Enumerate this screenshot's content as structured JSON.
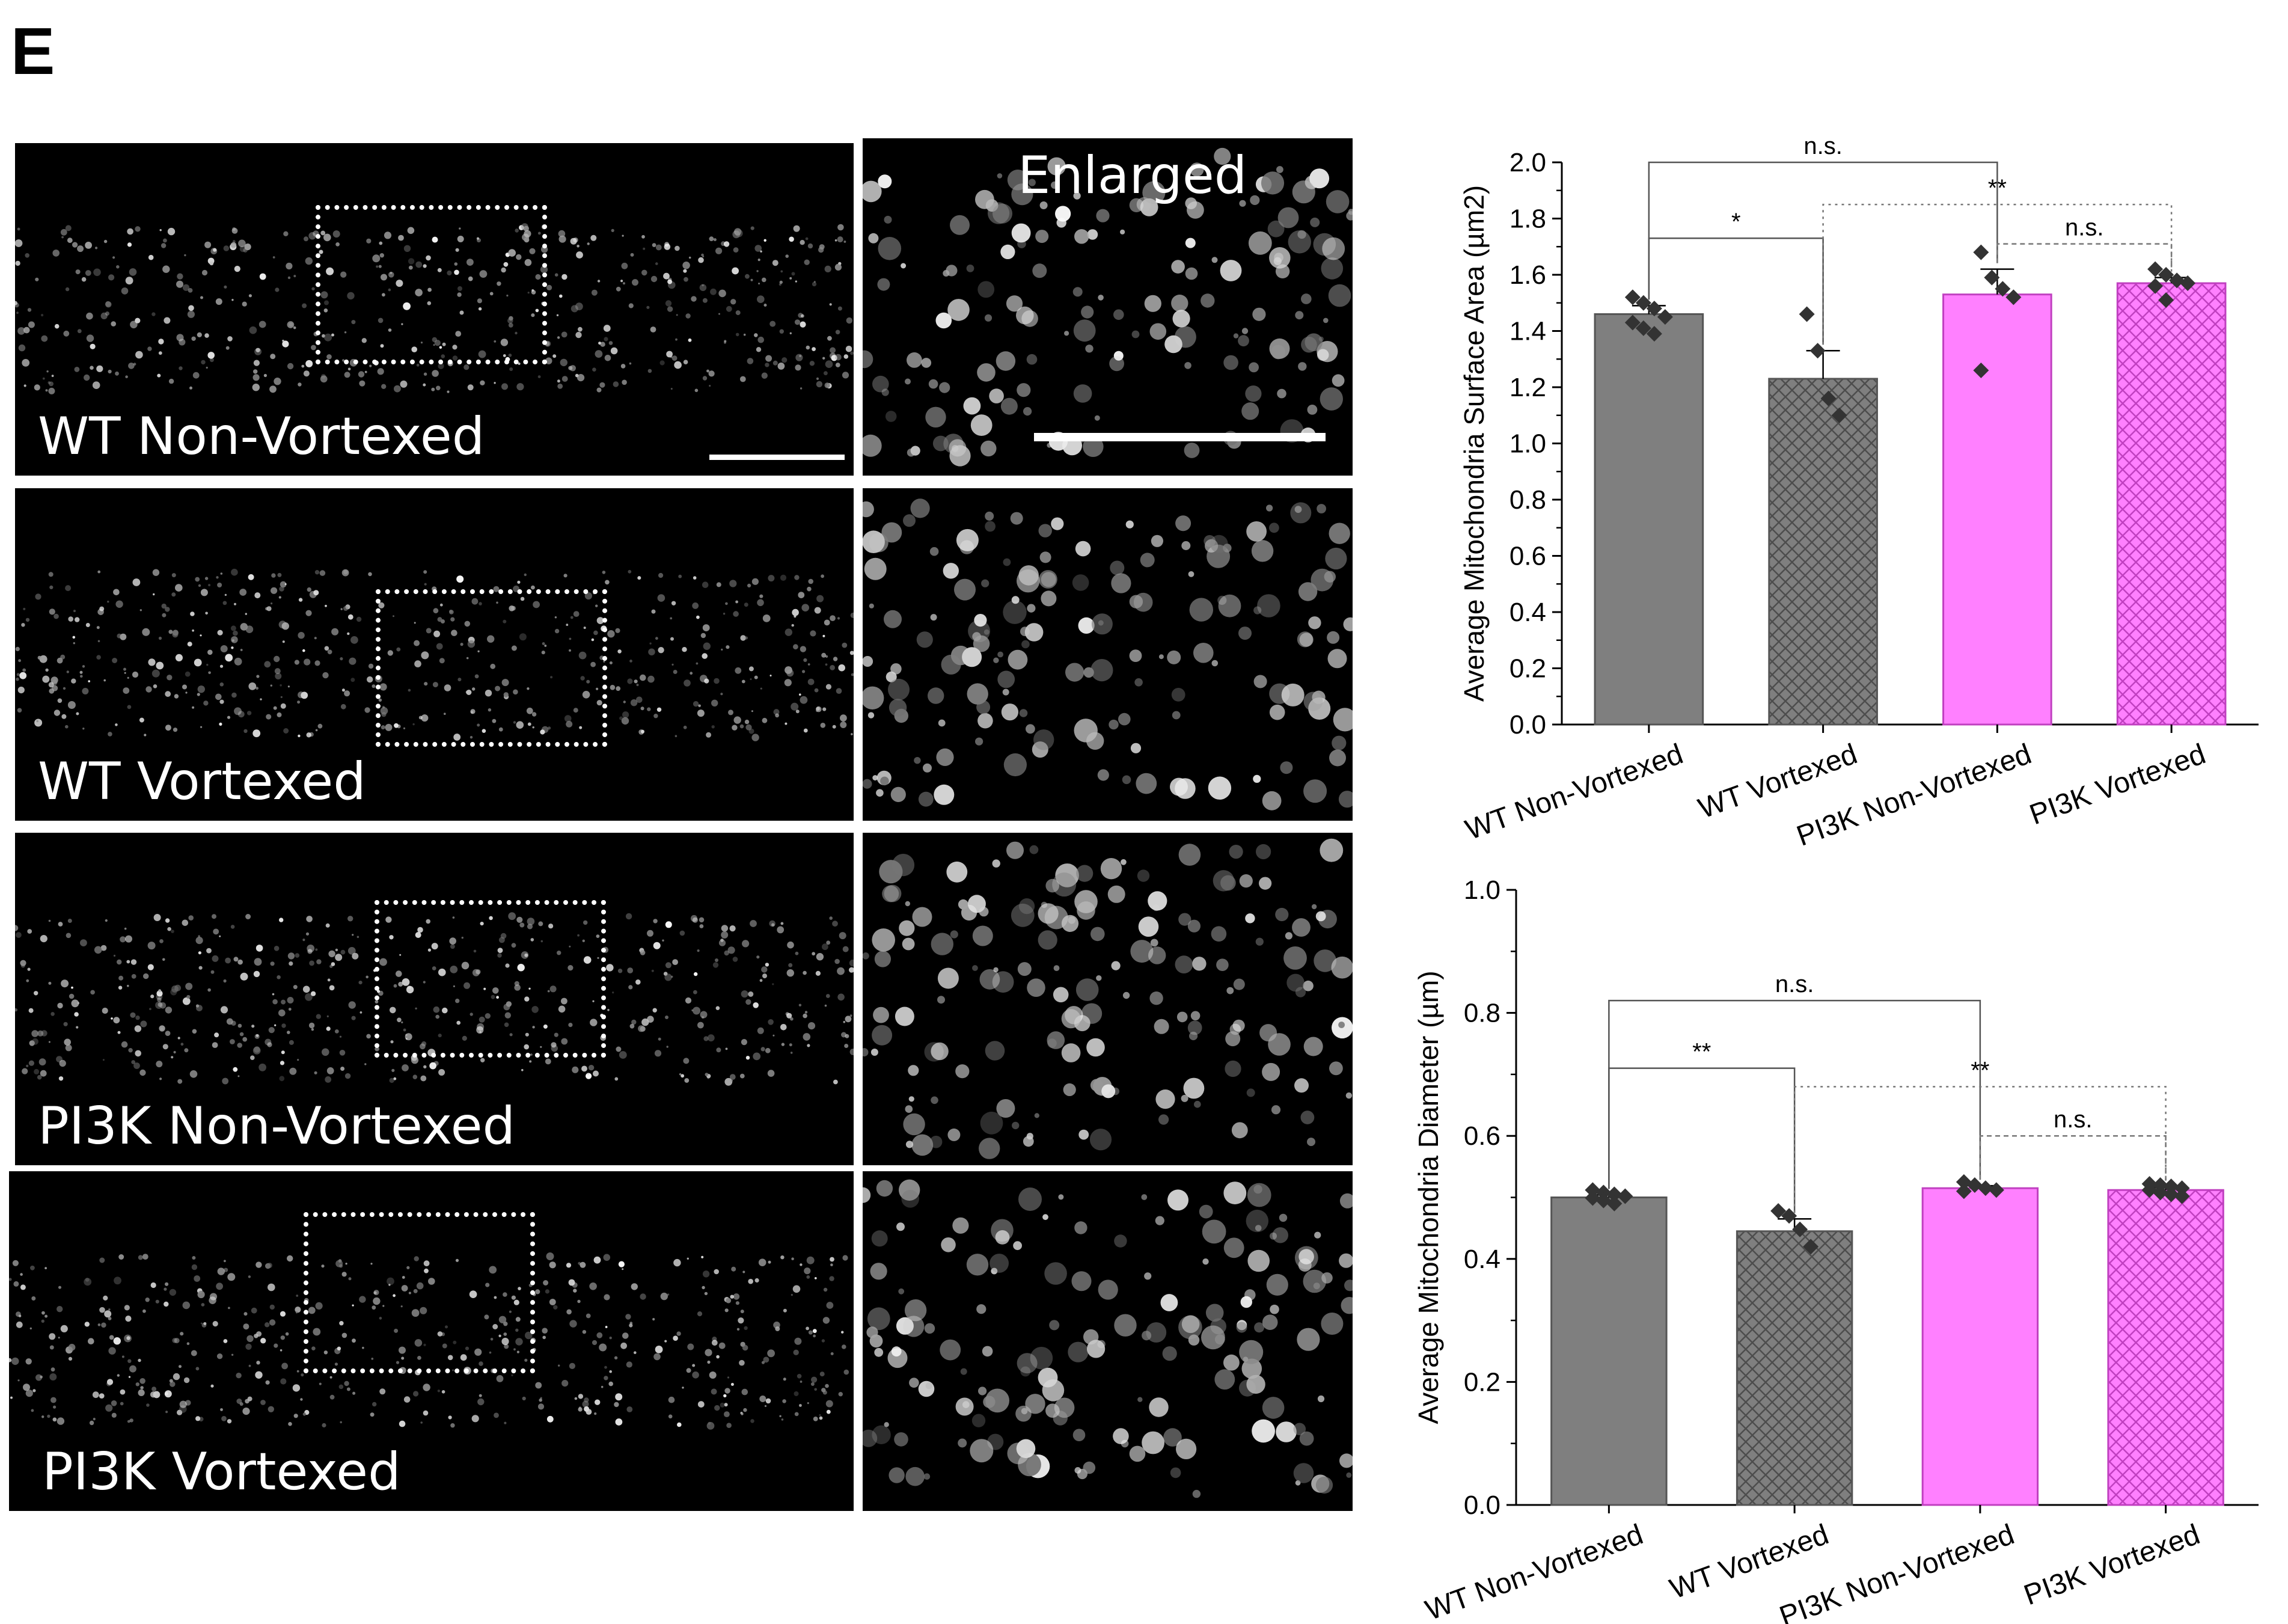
{
  "panel_letter": "E",
  "micrographs": {
    "enlarged_label": "Enlarged",
    "rows": [
      {
        "label": "WT  Non-Vortexed"
      },
      {
        "label": "WT  Vortexed"
      },
      {
        "label": "PI3K  Non-Vortexed"
      },
      {
        "label": "PI3K  Vortexed"
      }
    ]
  },
  "colors": {
    "wt": "#7f7f7f",
    "pi3k": "#ff80ff",
    "bar_edge_wt": "#555555",
    "bar_edge_pi3k": "#c040c0",
    "points": "#333333"
  },
  "chart_data": [
    {
      "type": "bar",
      "title": "",
      "categories": [
        "WT Non-Vortexed",
        "WT Vortexed",
        "PI3K Non-Vortexed",
        "PI3K Vortexed"
      ],
      "values": [
        1.46,
        1.23,
        1.53,
        1.57
      ],
      "errors": [
        0.03,
        0.1,
        0.09,
        0.02
      ],
      "points": [
        [
          1.52,
          1.5,
          1.48,
          1.45,
          1.43,
          1.41,
          1.39
        ],
        [
          1.46,
          1.33,
          1.16,
          1.1
        ],
        [
          1.68,
          1.59,
          1.55,
          1.52,
          1.26
        ],
        [
          1.62,
          1.6,
          1.58,
          1.57,
          1.56,
          1.51
        ]
      ],
      "hatched": [
        false,
        true,
        false,
        true
      ],
      "ylabel": "Average Mitochondria Surface Area (µm2)",
      "xlabel": "",
      "ylim": [
        0,
        2.0
      ],
      "yticks": [
        "0.0",
        "0.2",
        "0.4",
        "0.6",
        "0.8",
        "1.0",
        "1.2",
        "1.4",
        "1.6",
        "1.8",
        "2.0"
      ],
      "significance": [
        {
          "from": 0,
          "to": 2,
          "level": 2.0,
          "label": "n.s.",
          "style": "solid"
        },
        {
          "from": 0,
          "to": 1,
          "level": 1.73,
          "label": "*",
          "style": "solid"
        },
        {
          "from": 1,
          "to": 3,
          "level": 1.85,
          "label": "**",
          "style": "dotted"
        },
        {
          "from": 2,
          "to": 3,
          "level": 1.71,
          "label": "n.s.",
          "style": "dashed"
        }
      ]
    },
    {
      "type": "bar",
      "title": "",
      "categories": [
        "WT Non-Vortexed",
        "WT Vortexed",
        "PI3K Non-Vortexed",
        "PI3K Vortexed"
      ],
      "values": [
        0.5,
        0.445,
        0.515,
        0.512
      ],
      "errors": [
        0.004,
        0.02,
        0.004,
        0.004
      ],
      "points": [
        [
          0.512,
          0.508,
          0.505,
          0.502,
          0.499,
          0.495,
          0.49
        ],
        [
          0.478,
          0.47,
          0.448,
          0.42
        ],
        [
          0.525,
          0.52,
          0.515,
          0.512,
          0.51
        ],
        [
          0.522,
          0.52,
          0.518,
          0.515,
          0.512,
          0.508,
          0.505,
          0.502
        ]
      ],
      "hatched": [
        false,
        true,
        false,
        true
      ],
      "ylabel": "Average Mitochondria Diameter (µm)",
      "xlabel": "",
      "ylim": [
        0,
        1.0
      ],
      "yticks": [
        "0.0",
        "0.2",
        "0.4",
        "0.6",
        "0.8",
        "1.0"
      ],
      "significance": [
        {
          "from": 0,
          "to": 2,
          "level": 0.82,
          "label": "n.s.",
          "style": "solid"
        },
        {
          "from": 0,
          "to": 1,
          "level": 0.71,
          "label": "**",
          "style": "solid"
        },
        {
          "from": 1,
          "to": 3,
          "level": 0.68,
          "label": "**",
          "style": "dotted"
        },
        {
          "from": 2,
          "to": 3,
          "level": 0.6,
          "label": "n.s.",
          "style": "dashed"
        }
      ]
    }
  ]
}
